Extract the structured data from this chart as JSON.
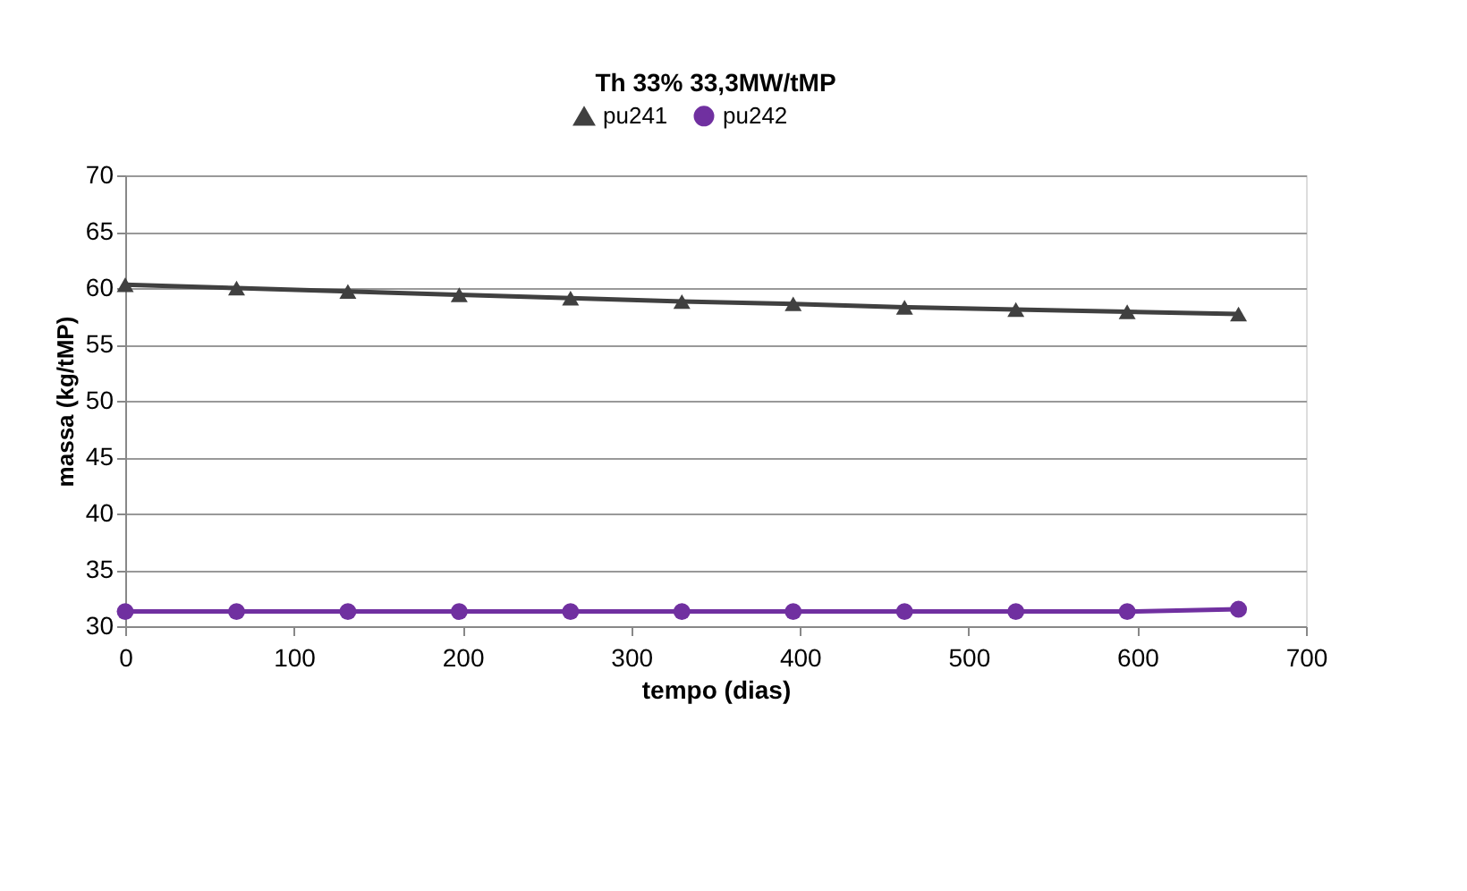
{
  "chart_data": {
    "type": "line",
    "title": "Th 33%    33,3MW/tMP",
    "xlabel": "tempo (dias)",
    "ylabel": "massa  (kg/tMP)",
    "x": [
      0,
      66,
      132,
      198,
      264,
      330,
      396,
      462,
      528,
      594,
      660
    ],
    "series": [
      {
        "name": "pu241",
        "color": "#404040",
        "marker": "triangle",
        "values": [
          60.3,
          60.0,
          59.7,
          59.4,
          59.1,
          58.8,
          58.6,
          58.3,
          58.1,
          57.9,
          57.7
        ]
      },
      {
        "name": "pu242",
        "color": "#7030a0",
        "marker": "circle",
        "values": [
          31.3,
          31.3,
          31.3,
          31.3,
          31.3,
          31.3,
          31.3,
          31.3,
          31.3,
          31.3,
          31.5
        ]
      }
    ],
    "xlim": [
      0,
      700
    ],
    "xticks": [
      0,
      100,
      200,
      300,
      400,
      500,
      600,
      700
    ],
    "ylim": [
      30,
      70
    ],
    "yticks": [
      30,
      35,
      40,
      45,
      50,
      55,
      60,
      65,
      70
    ],
    "grid": "y",
    "legend": "top",
    "line_style": "solid"
  }
}
